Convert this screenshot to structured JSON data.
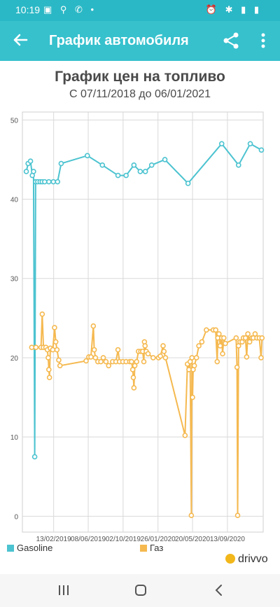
{
  "status_bar": {
    "time": "10:19",
    "left_icons": "▣ ⚲ ✆ •",
    "right_icons": "⏰ ✱ ▮ ▮"
  },
  "app_bar": {
    "title": "График автомобиля",
    "back_icon": "arrow-back-icon",
    "share_icon": "share-icon",
    "more_icon": "more-vert-icon"
  },
  "chart_data": {
    "type": "line",
    "title": "График цен на топливо",
    "subtitle": "С 07/11/2018 до 06/01/2021",
    "x_tick_labels": [
      "13/02/2019",
      "08/06/2019",
      "02/10/2019",
      "26/01/2020",
      "20/05/2020",
      "13/09/2020"
    ],
    "y_tick_labels": [
      "0",
      "10",
      "20",
      "30",
      "40",
      "50"
    ],
    "ylim": [
      -2,
      51
    ],
    "grid": true,
    "legend_position": "bottom",
    "series": [
      {
        "name": "Gasoline",
        "color": "#4cc3d0",
        "points": [
          [
            "2018-11-14",
            43.5
          ],
          [
            "2018-11-20",
            44.5
          ],
          [
            "2018-11-28",
            44.8
          ],
          [
            "2018-12-04",
            43.0
          ],
          [
            "2018-12-08",
            43.5
          ],
          [
            "2018-12-12",
            7.5
          ],
          [
            "2018-12-15",
            42.2
          ],
          [
            "2018-12-22",
            42.2
          ],
          [
            "2018-12-30",
            42.2
          ],
          [
            "2019-01-06",
            42.2
          ],
          [
            "2019-01-14",
            42.2
          ],
          [
            "2019-01-28",
            42.2
          ],
          [
            "2019-02-12",
            42.2
          ],
          [
            "2019-02-26",
            42.2
          ],
          [
            "2019-03-10",
            44.5
          ],
          [
            "2019-06-05",
            45.5
          ],
          [
            "2019-07-25",
            44.3
          ],
          [
            "2019-09-15",
            43.0
          ],
          [
            "2019-10-12",
            43.0
          ],
          [
            "2019-11-07",
            44.3
          ],
          [
            "2019-11-28",
            43.5
          ],
          [
            "2019-12-15",
            43.5
          ],
          [
            "2020-01-05",
            44.3
          ],
          [
            "2020-02-18",
            45.0
          ],
          [
            "2020-05-05",
            42.0
          ],
          [
            "2020-08-25",
            47.0
          ],
          [
            "2020-10-20",
            44.3
          ],
          [
            "2020-11-28",
            47.0
          ],
          [
            "2021-01-04",
            46.2
          ]
        ]
      },
      {
        "name": "Газ",
        "color": "#f5b950",
        "points": [
          [
            "2018-12-02",
            21.3
          ],
          [
            "2018-12-16",
            21.3
          ],
          [
            "2019-01-02",
            21.3
          ],
          [
            "2019-01-06",
            25.5
          ],
          [
            "2019-01-10",
            21.3
          ],
          [
            "2019-01-18",
            21.3
          ],
          [
            "2019-01-23",
            21.0
          ],
          [
            "2019-01-26",
            20.0
          ],
          [
            "2019-01-28",
            18.5
          ],
          [
            "2019-01-30",
            17.5
          ],
          [
            "2019-02-02",
            21.2
          ],
          [
            "2019-02-10",
            21.0
          ],
          [
            "2019-02-16",
            23.8
          ],
          [
            "2019-02-20",
            22.0
          ],
          [
            "2019-02-24",
            21.0
          ],
          [
            "2019-03-02",
            19.7
          ],
          [
            "2019-03-06",
            19.0
          ],
          [
            "2019-06-01",
            19.6
          ],
          [
            "2019-06-10",
            20.1
          ],
          [
            "2019-06-17",
            20.1
          ],
          [
            "2019-06-25",
            24.0
          ],
          [
            "2019-06-28",
            21.0
          ],
          [
            "2019-07-02",
            20.0
          ],
          [
            "2019-07-10",
            19.5
          ],
          [
            "2019-07-20",
            19.5
          ],
          [
            "2019-07-28",
            20.0
          ],
          [
            "2019-08-06",
            19.5
          ],
          [
            "2019-08-15",
            19.0
          ],
          [
            "2019-08-28",
            19.5
          ],
          [
            "2019-09-08",
            19.5
          ],
          [
            "2019-09-15",
            21.0
          ],
          [
            "2019-09-20",
            19.5
          ],
          [
            "2019-10-01",
            19.5
          ],
          [
            "2019-10-12",
            19.5
          ],
          [
            "2019-10-24",
            19.5
          ],
          [
            "2019-10-30",
            19.5
          ],
          [
            "2019-11-03",
            18.5
          ],
          [
            "2019-11-05",
            17.5
          ],
          [
            "2019-11-07",
            16.2
          ],
          [
            "2019-11-10",
            19.0
          ],
          [
            "2019-11-16",
            19.5
          ],
          [
            "2019-11-22",
            20.8
          ],
          [
            "2019-11-30",
            20.8
          ],
          [
            "2019-12-06",
            20.8
          ],
          [
            "2019-12-10",
            19.5
          ],
          [
            "2019-12-12",
            22.0
          ],
          [
            "2019-12-14",
            21.5
          ],
          [
            "2019-12-18",
            20.8
          ],
          [
            "2019-12-24",
            20.5
          ],
          [
            "2020-01-10",
            20.0
          ],
          [
            "2020-01-28",
            20.0
          ],
          [
            "2020-02-03",
            20.2
          ],
          [
            "2020-02-12",
            21.5
          ],
          [
            "2020-02-15",
            20.8
          ],
          [
            "2020-02-20",
            20.0
          ],
          [
            "2020-04-25",
            10.2
          ],
          [
            "2020-05-03",
            19.2
          ],
          [
            "2020-05-08",
            18.5
          ],
          [
            "2020-05-12",
            19.5
          ],
          [
            "2020-05-16",
            0.1
          ],
          [
            "2020-05-18",
            20.0
          ],
          [
            "2020-05-20",
            15.0
          ],
          [
            "2020-05-22",
            18.5
          ],
          [
            "2020-05-26",
            19.0
          ],
          [
            "2020-06-02",
            20.0
          ],
          [
            "2020-06-10",
            21.5
          ],
          [
            "2020-06-20",
            22.0
          ],
          [
            "2020-07-05",
            23.5
          ],
          [
            "2020-07-28",
            23.5
          ],
          [
            "2020-08-05",
            23.5
          ],
          [
            "2020-08-10",
            19.5
          ],
          [
            "2020-08-12",
            22.5
          ],
          [
            "2020-08-16",
            23.0
          ],
          [
            "2020-08-20",
            21.5
          ],
          [
            "2020-08-25",
            22.5
          ],
          [
            "2020-08-28",
            20.5
          ],
          [
            "2020-09-01",
            22.5
          ],
          [
            "2020-09-06",
            21.8
          ],
          [
            "2020-10-12",
            22.5
          ],
          [
            "2020-10-15",
            18.8
          ],
          [
            "2020-10-17",
            0.1
          ],
          [
            "2020-10-20",
            21.5
          ],
          [
            "2020-10-25",
            22.0
          ],
          [
            "2020-11-01",
            22.0
          ],
          [
            "2020-11-05",
            22.5
          ],
          [
            "2020-11-12",
            22.5
          ],
          [
            "2020-11-16",
            20.1
          ],
          [
            "2020-11-20",
            23.0
          ],
          [
            "2020-11-26",
            22.0
          ],
          [
            "2020-12-03",
            22.5
          ],
          [
            "2020-12-08",
            22.5
          ],
          [
            "2020-12-14",
            23.0
          ],
          [
            "2020-12-20",
            22.5
          ],
          [
            "2020-12-28",
            22.5
          ],
          [
            "2021-01-03",
            20.0
          ],
          [
            "2021-01-06",
            22.5
          ]
        ]
      }
    ]
  },
  "brand": {
    "name": "drivvo"
  },
  "nav_bar": {
    "recents_icon": "recents-icon",
    "home_icon": "home-icon",
    "back_icon": "nav-back-icon"
  }
}
